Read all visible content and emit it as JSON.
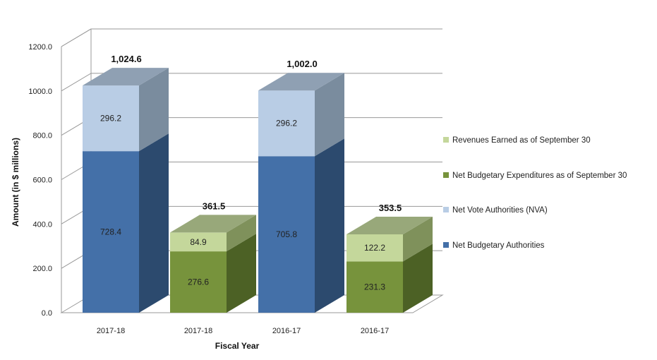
{
  "chart_data": {
    "type": "bar",
    "stacked": true,
    "three_d": true,
    "xlabel": "Fiscal Year",
    "ylabel": "Amount (in $ millions)",
    "ylim": [
      0,
      1200
    ],
    "yticks": [
      "0.0",
      "200.0",
      "400.0",
      "600.0",
      "800.0",
      "1000.0",
      "1200.0"
    ],
    "categories": [
      "2017-18",
      "2017-18",
      "2016-17",
      "2016-17"
    ],
    "totals": [
      "1,024.6",
      "361.5",
      "1,002.0",
      "353.5"
    ],
    "bars": [
      {
        "category": "2017-18",
        "segments": [
          {
            "series": "Net Budgetary Authorities",
            "value": 728.4,
            "label": "728.4"
          },
          {
            "series": "Net Vote Authorities (NVA)",
            "value": 296.2,
            "label": "296.2"
          }
        ]
      },
      {
        "category": "2017-18",
        "segments": [
          {
            "series": "Net Budgetary Expenditures as of September 30",
            "value": 276.6,
            "label": "276.6"
          },
          {
            "series": "Revenues Earned as of September 30",
            "value": 84.9,
            "label": "84.9"
          }
        ]
      },
      {
        "category": "2016-17",
        "segments": [
          {
            "series": "Net Budgetary Authorities",
            "value": 705.8,
            "label": "705.8"
          },
          {
            "series": "Net Vote Authorities (NVA)",
            "value": 296.2,
            "label": "296.2"
          }
        ]
      },
      {
        "category": "2016-17",
        "segments": [
          {
            "series": "Net Budgetary Expenditures as of September 30",
            "value": 231.3,
            "label": "231.3"
          },
          {
            "series": "Revenues Earned as of September 30",
            "value": 122.2,
            "label": "122.2"
          }
        ]
      }
    ],
    "legend": [
      {
        "name": "Revenues Earned as of September 30",
        "color": "#c4d79b"
      },
      {
        "name": "Net Budgetary Expenditures as of September 30",
        "color": "#77933c"
      },
      {
        "name": "Net Vote Authorities (NVA)",
        "color": "#b9cde5"
      },
      {
        "name": "Net Budgetary Authorities",
        "color": "#4470a8"
      }
    ],
    "legend_position": "right",
    "grid": true,
    "series_colors": {
      "Net Budgetary Authorities": {
        "front": "#4470a8",
        "side": "#2c4a6e",
        "top": "#8fa5bf"
      },
      "Net Vote Authorities (NVA)": {
        "front": "#b9cde5",
        "side": "#7a8c9e",
        "top": "#8fa0b3"
      },
      "Net Budgetary Expenditures as of September 30": {
        "front": "#77933c",
        "side": "#4c6125",
        "top": "#8fa16e"
      },
      "Revenues Earned as of September 30": {
        "front": "#c4d79b",
        "side": "#7f915b",
        "top": "#98a87a"
      }
    }
  }
}
